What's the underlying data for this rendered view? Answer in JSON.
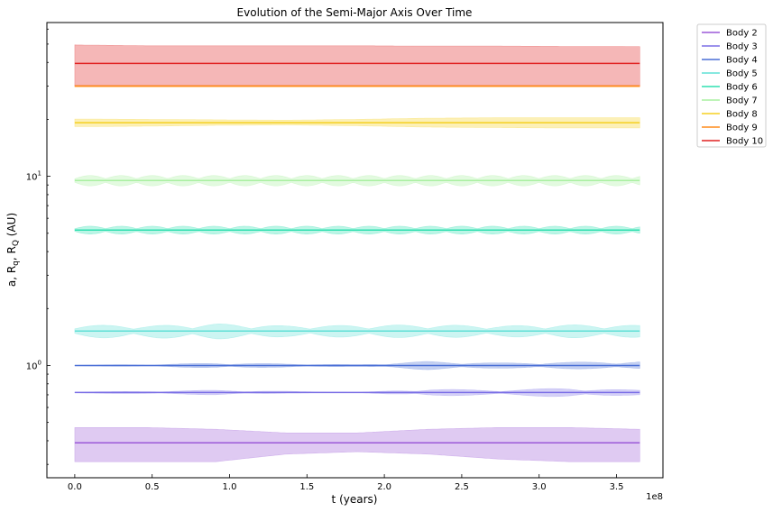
{
  "chart_data": {
    "type": "line",
    "title": "Evolution of the Semi-Major Axis Over Time",
    "xlabel": "t (years)",
    "ylabel": "a, R_q, R_Q (AU)",
    "ylabel_parts": {
      "main": "a, R",
      "sub1": "q",
      "sep": ", R",
      "sub2": "Q",
      "unit": " (AU)"
    },
    "x_offset_text": "1e8",
    "xscale": "linear",
    "yscale": "log",
    "xlim": [
      -0.18,
      3.8
    ],
    "ylim": [
      0.255,
      65
    ],
    "x_ticks": [
      0.0,
      0.5,
      1.0,
      1.5,
      2.0,
      2.5,
      3.0,
      3.5
    ],
    "x_tick_labels": [
      "0.0",
      "0.5",
      "1.0",
      "1.5",
      "2.0",
      "2.5",
      "3.0",
      "3.5"
    ],
    "y_major_ticks": [
      1,
      10
    ],
    "y_major_labels": [
      {
        "base": "10",
        "exp": "0"
      },
      {
        "base": "10",
        "exp": "1"
      }
    ],
    "x_range": [
      0,
      3.65
    ],
    "legend_position": "outside-right-top",
    "grid": false,
    "series": [
      {
        "name": "Body 2",
        "color": "#9b59d8",
        "a": 0.39,
        "rq": [
          0.31,
          0.31,
          0.31,
          0.34,
          0.35,
          0.34,
          0.32,
          0.31,
          0.31
        ],
        "rQ": [
          0.47,
          0.47,
          0.46,
          0.44,
          0.44,
          0.46,
          0.47,
          0.47,
          0.46
        ]
      },
      {
        "name": "Body 3",
        "color": "#7b6fe6",
        "a": 0.72,
        "rq": [
          0.715,
          0.71,
          0.7,
          0.715,
          0.72,
          0.69,
          0.7,
          0.68,
          0.7
        ],
        "rQ": [
          0.725,
          0.73,
          0.74,
          0.73,
          0.72,
          0.75,
          0.74,
          0.76,
          0.74
        ]
      },
      {
        "name": "Body 4",
        "color": "#4a6fd6",
        "a": 1.0,
        "rq": [
          0.995,
          0.99,
          0.97,
          0.98,
          0.99,
          0.95,
          0.97,
          0.96,
          0.96
        ],
        "rQ": [
          1.005,
          1.01,
          1.03,
          1.02,
          1.01,
          1.05,
          1.03,
          1.04,
          1.05
        ]
      },
      {
        "name": "Body 5",
        "color": "#5fe0d6",
        "a": 1.52,
        "rq": [
          1.4,
          1.4,
          1.38,
          1.42,
          1.41,
          1.4,
          1.42,
          1.4,
          1.41
        ],
        "rQ": [
          1.64,
          1.62,
          1.66,
          1.62,
          1.63,
          1.64,
          1.62,
          1.64,
          1.63
        ]
      },
      {
        "name": "Body 6",
        "color": "#2fe0b0",
        "a": 5.2,
        "rq": [
          4.95,
          4.95,
          4.95,
          4.95,
          4.95,
          4.95,
          4.95,
          4.95,
          4.95
        ],
        "rQ": [
          5.45,
          5.45,
          5.45,
          5.45,
          5.45,
          5.45,
          5.45,
          5.45,
          5.45
        ]
      },
      {
        "name": "Body 7",
        "color": "#a8f0a0",
        "a": 9.5,
        "rq": [
          8.9,
          8.9,
          8.9,
          8.9,
          8.9,
          8.9,
          8.9,
          8.9,
          8.9
        ],
        "rQ": [
          10.1,
          10.1,
          10.1,
          10.1,
          10.1,
          10.1,
          10.1,
          10.1,
          10.1
        ]
      },
      {
        "name": "Body 8",
        "color": "#f5d020",
        "a": 19.2,
        "rq": [
          18.3,
          18.4,
          18.6,
          18.7,
          18.5,
          18.2,
          18.1,
          18.0,
          18.0
        ],
        "rQ": [
          20.1,
          20.0,
          19.9,
          19.8,
          20.0,
          20.3,
          20.4,
          20.4,
          20.4
        ]
      },
      {
        "name": "Body 9",
        "color": "#ff8c1a",
        "a": 30.0,
        "rq": [
          29.7,
          29.7,
          29.7,
          29.7,
          29.7,
          29.7,
          29.7,
          29.7,
          29.7
        ],
        "rQ": [
          30.3,
          30.3,
          30.3,
          30.3,
          30.3,
          30.3,
          30.3,
          30.3,
          30.3
        ]
      },
      {
        "name": "Body 10",
        "color": "#e02020",
        "a": 39.5,
        "rq": [
          30.0,
          30.0,
          30.0,
          30.0,
          30.0,
          30.0,
          30.0,
          30.0,
          30.0
        ],
        "rQ": [
          49.5,
          49.0,
          49.0,
          49.0,
          49.0,
          48.8,
          48.8,
          48.6,
          48.5
        ]
      }
    ]
  }
}
